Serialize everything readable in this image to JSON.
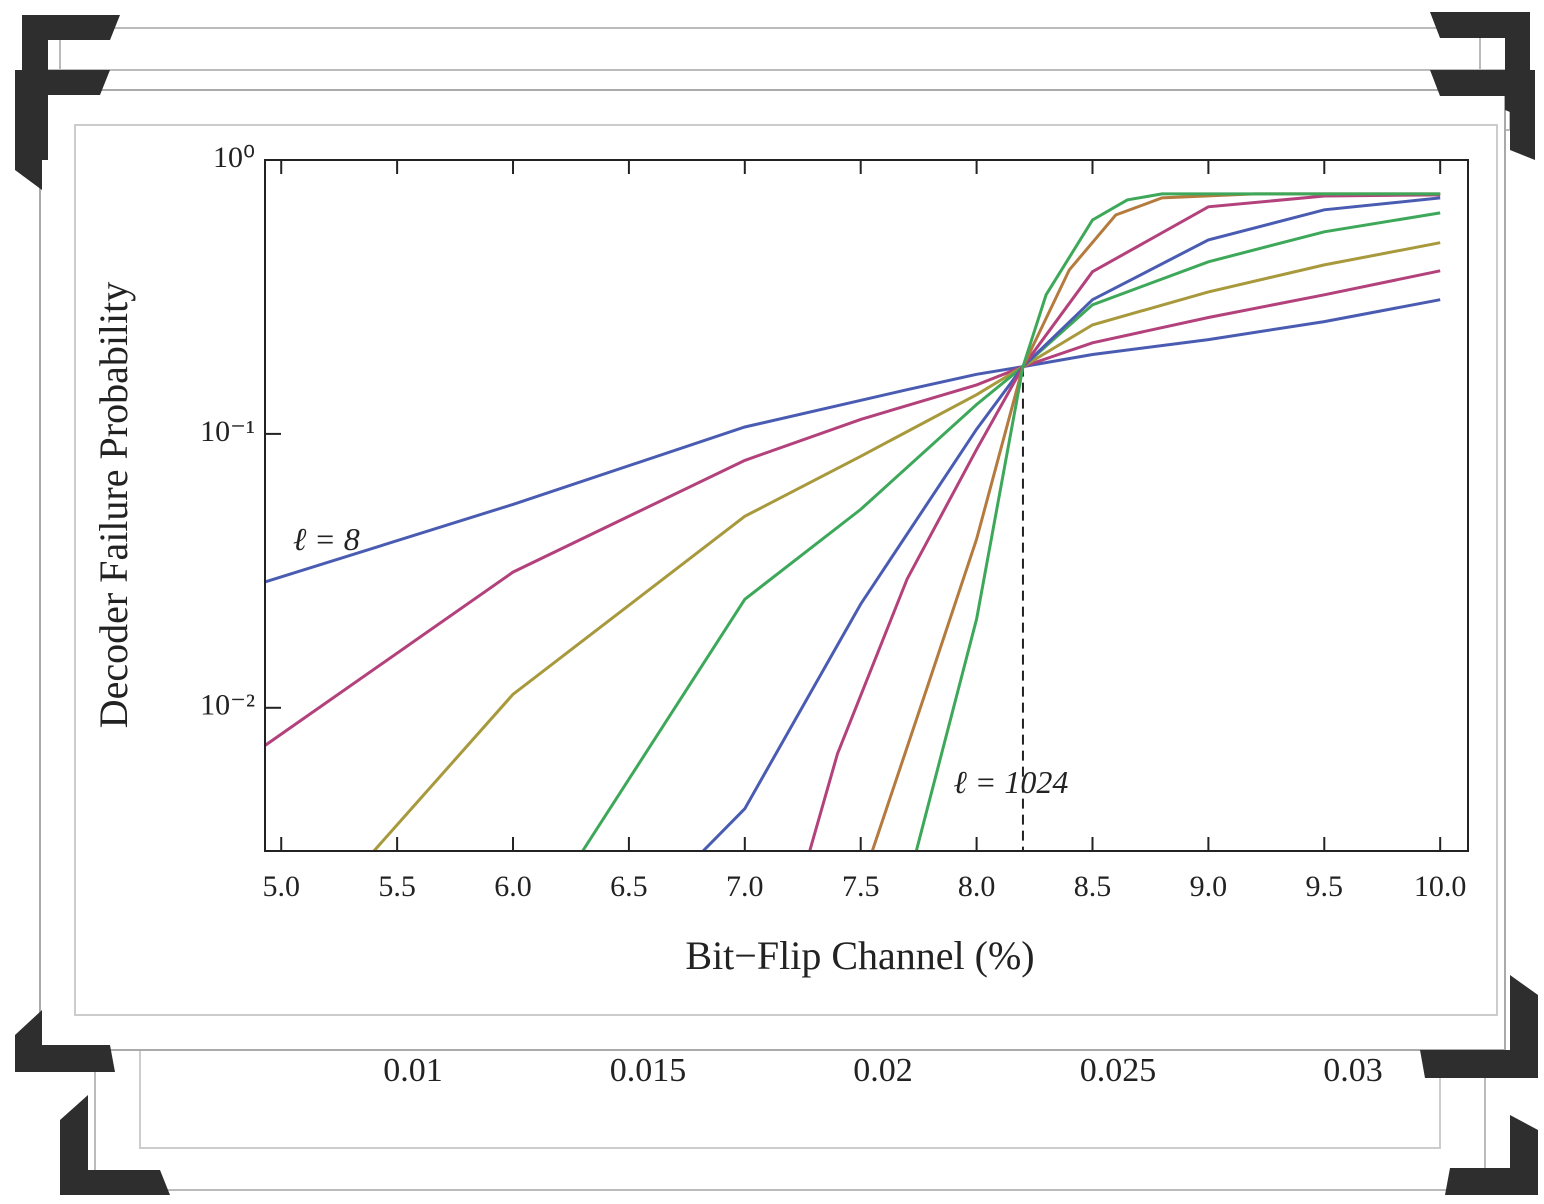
{
  "chart_data": {
    "type": "line",
    "log_y": true,
    "y_label": "Decoder Failure Probability",
    "x_label": "Bit−Flip Channel (%)",
    "xlim": [
      4.93,
      10.12
    ],
    "ylim": [
      0.003,
      1
    ],
    "xticks": [
      {
        "value": 5,
        "label": "5.0"
      },
      {
        "value": 5.5,
        "label": "5.5"
      },
      {
        "value": 6,
        "label": "6.0"
      },
      {
        "value": 6.5,
        "label": "6.5"
      },
      {
        "value": 7,
        "label": "7.0"
      },
      {
        "value": 7.5,
        "label": "7.5"
      },
      {
        "value": 8,
        "label": "8.0"
      },
      {
        "value": 8.5,
        "label": "8.5"
      },
      {
        "value": 9,
        "label": "9.0"
      },
      {
        "value": 9.5,
        "label": "9.5"
      },
      {
        "value": 10,
        "label": "10.0"
      }
    ],
    "yticks": [
      {
        "value": 1,
        "label": "10⁰"
      },
      {
        "value": 0.1,
        "label": "10⁻¹"
      },
      {
        "value": 0.01,
        "label": "10⁻²"
      }
    ],
    "threshold_x": 8.2,
    "threshold_y": 0.176,
    "annotations": [
      {
        "text": "ℓ = 8",
        "x": 5.05,
        "y": 0.04
      },
      {
        "text": "ℓ = 1024",
        "x": 7.9,
        "y": 0.0052
      }
    ],
    "series": [
      {
        "color": "#4a5cb2",
        "x": [
          4.93,
          6.0,
          7.0,
          7.7,
          8.0,
          8.2,
          8.5,
          9.0,
          9.5,
          10.0
        ],
        "values": [
          0.0288,
          0.0553,
          0.106,
          0.145,
          0.165,
          0.176,
          0.195,
          0.221,
          0.257,
          0.309
        ]
      },
      {
        "color": "#b3417c",
        "x": [
          4.93,
          6.0,
          7.0,
          7.5,
          8.0,
          8.2,
          8.5,
          9.0,
          9.5,
          10.0
        ],
        "values": [
          0.00728,
          0.0313,
          0.08,
          0.113,
          0.151,
          0.176,
          0.215,
          0.266,
          0.322,
          0.394
        ]
      },
      {
        "color": "#a8993c",
        "x": [
          5.4,
          6.0,
          7.0,
          7.5,
          8.0,
          8.2,
          8.5,
          9.0,
          9.5,
          10.0
        ],
        "values": [
          0.003,
          0.0112,
          0.05,
          0.0828,
          0.139,
          0.176,
          0.25,
          0.33,
          0.414,
          0.499
        ]
      },
      {
        "color": "#3ea85a",
        "x": [
          6.3,
          7.0,
          7.5,
          8.0,
          8.2,
          8.5,
          9.0,
          9.5,
          10.0
        ],
        "values": [
          0.003,
          0.0249,
          0.053,
          0.128,
          0.176,
          0.296,
          0.425,
          0.547,
          0.641
        ]
      },
      {
        "color": "#4a5cb2",
        "x": [
          6.82,
          7.0,
          7.5,
          8.0,
          8.2,
          8.5,
          9.0,
          9.5,
          10.0
        ],
        "values": [
          0.003,
          0.00428,
          0.0239,
          0.104,
          0.176,
          0.309,
          0.511,
          0.658,
          0.727
        ]
      },
      {
        "color": "#b3417c",
        "x": [
          7.28,
          7.4,
          7.7,
          8.0,
          8.2,
          8.5,
          9.0,
          9.5,
          10.0
        ],
        "values": [
          0.003,
          0.0068,
          0.0295,
          0.0878,
          0.176,
          0.391,
          0.675,
          0.739,
          0.746
        ]
      },
      {
        "color": "#b57a3e",
        "x": [
          7.55,
          7.8,
          8.0,
          8.2,
          8.4,
          8.6,
          8.8,
          9.2,
          10.0
        ],
        "values": [
          0.003,
          0.0128,
          0.0413,
          0.176,
          0.397,
          0.63,
          0.727,
          0.752,
          0.752
        ]
      },
      {
        "color": "#3ea85a",
        "x": [
          7.74,
          8.0,
          8.2,
          8.3,
          8.5,
          8.65,
          8.8,
          10.0
        ],
        "values": [
          0.003,
          0.0211,
          0.176,
          0.322,
          0.604,
          0.715,
          0.752,
          0.752
        ]
      }
    ]
  },
  "background_axis": {
    "ticks": [
      0.01,
      0.015,
      0.02,
      0.025,
      0.03
    ]
  }
}
